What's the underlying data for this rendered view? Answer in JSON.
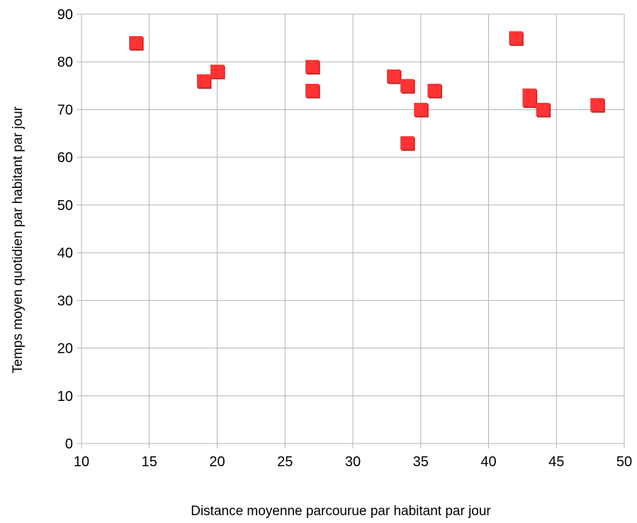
{
  "chart_data": {
    "type": "scatter",
    "title": "",
    "xlabel": "Distance moyenne parcourue par habitant par jour",
    "ylabel": "Temps moyen quotidien par habitant par jour",
    "xlim": [
      10,
      50
    ],
    "ylim": [
      0,
      90
    ],
    "x_ticks": [
      "10",
      "15",
      "20",
      "25",
      "30",
      "35",
      "40",
      "45",
      "50"
    ],
    "y_ticks": [
      "0",
      "10",
      "20",
      "30",
      "40",
      "50",
      "60",
      "70",
      "80",
      "90"
    ],
    "grid": true,
    "legend": "none",
    "marker": "square",
    "marker_color": "#ff3333",
    "grid_color": "#b3b3b3",
    "series": [
      {
        "points": [
          {
            "x": 14,
            "y": 84
          },
          {
            "x": 19,
            "y": 76
          },
          {
            "x": 20,
            "y": 78
          },
          {
            "x": 27,
            "y": 79
          },
          {
            "x": 27,
            "y": 74
          },
          {
            "x": 33,
            "y": 77
          },
          {
            "x": 34,
            "y": 75
          },
          {
            "x": 34,
            "y": 63
          },
          {
            "x": 35,
            "y": 70
          },
          {
            "x": 36,
            "y": 74
          },
          {
            "x": 42,
            "y": 85
          },
          {
            "x": 43,
            "y": 73
          },
          {
            "x": 43,
            "y": 72
          },
          {
            "x": 44,
            "y": 70
          },
          {
            "x": 48,
            "y": 71
          }
        ]
      }
    ]
  }
}
